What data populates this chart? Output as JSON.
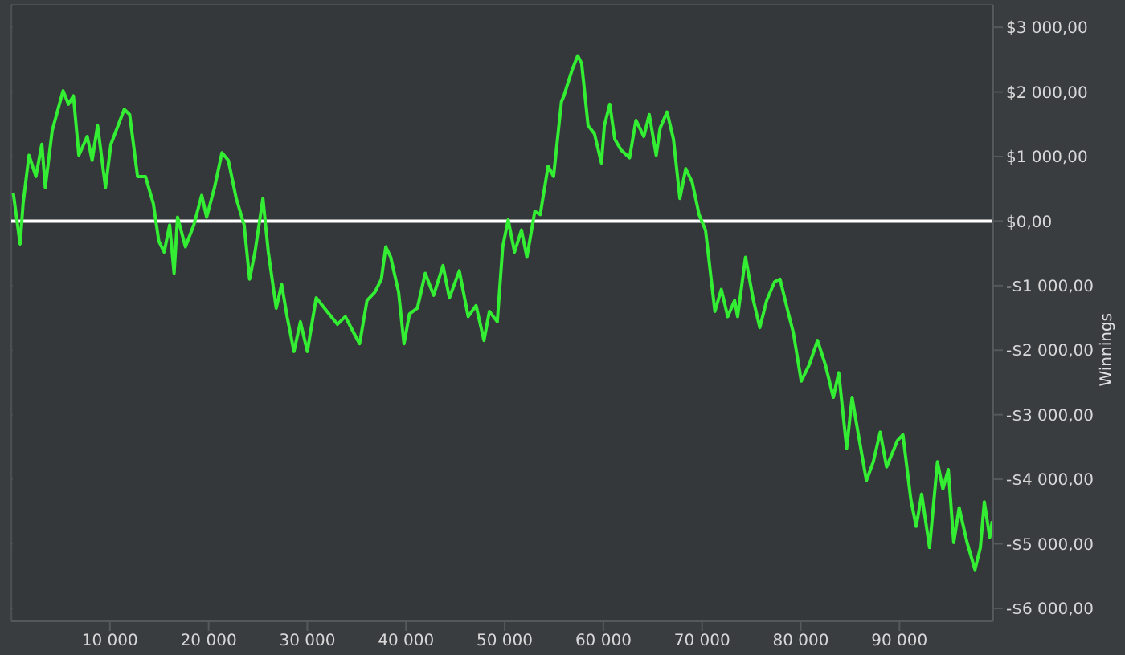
{
  "chart_data": {
    "type": "line",
    "ylabel": "Winnings",
    "x": [
      200,
      900,
      1200,
      1800,
      2500,
      3100,
      3450,
      4150,
      5250,
      5800,
      6300,
      6850,
      7700,
      8200,
      8750,
      9550,
      10100,
      11450,
      12000,
      12800,
      13600,
      14400,
      14950,
      15500,
      16050,
      16500,
      16850,
      17650,
      18500,
      19300,
      19800,
      20600,
      21350,
      22000,
      22800,
      23600,
      24150,
      24700,
      25500,
      26050,
      26850,
      27400,
      27950,
      28650,
      29300,
      30000,
      30900,
      32000,
      33050,
      33850,
      34700,
      35300,
      36050,
      36850,
      37500,
      37950,
      38450,
      39250,
      39800,
      40350,
      41150,
      41950,
      42800,
      43750,
      44400,
      45400,
      46300,
      47100,
      47900,
      48450,
      49250,
      49800,
      50350,
      51000,
      51700,
      52250,
      53050,
      53600,
      54400,
      54950,
      55750,
      56000,
      56850,
      57400,
      57800,
      58450,
      59100,
      59800,
      60100,
      60650,
      61150,
      61800,
      62650,
      63300,
      64100,
      64650,
      65350,
      65750,
      66450,
      67100,
      67750,
      68350,
      69000,
      69700,
      70350,
      71300,
      71950,
      72600,
      73300,
      73600,
      74400,
      75200,
      75850,
      76550,
      77350,
      77900,
      78700,
      79250,
      80050,
      80850,
      81700,
      82500,
      83300,
      83850,
      84650,
      85200,
      85750,
      86650,
      87350,
      88050,
      88700,
      89800,
      90350,
      91150,
      91700,
      92250,
      93050,
      93850,
      94400,
      94950,
      95500,
      96050,
      96850,
      97650,
      98200,
      98600,
      99150,
      99400
    ],
    "series": [
      {
        "color": "#33ee33",
        "values": [
          440,
          -355,
          270,
          1020,
          690,
          1190,
          520,
          1400,
          2020,
          1810,
          1940,
          1020,
          1310,
          940,
          1480,
          520,
          1190,
          1730,
          1650,
          690,
          690,
          270,
          -310,
          -480,
          -60,
          -810,
          60,
          -400,
          -60,
          400,
          60,
          520,
          1060,
          940,
          350,
          -60,
          -900,
          -480,
          350,
          -480,
          -1350,
          -980,
          -1480,
          -2020,
          -1560,
          -2020,
          -1190,
          -1400,
          -1600,
          -1480,
          -1730,
          -1900,
          -1230,
          -1100,
          -900,
          -400,
          -560,
          -1100,
          -1900,
          -1440,
          -1350,
          -810,
          -1150,
          -690,
          -1190,
          -770,
          -1480,
          -1310,
          -1850,
          -1400,
          -1560,
          -400,
          20,
          -480,
          -140,
          -560,
          150,
          100,
          850,
          690,
          1850,
          1940,
          2350,
          2560,
          2440,
          1480,
          1350,
          900,
          1480,
          1810,
          1270,
          1100,
          980,
          1560,
          1310,
          1650,
          1020,
          1440,
          1690,
          1270,
          350,
          810,
          600,
          100,
          -140,
          -1400,
          -1060,
          -1480,
          -1230,
          -1480,
          -560,
          -1230,
          -1650,
          -1230,
          -940,
          -900,
          -1400,
          -1730,
          -2480,
          -2230,
          -1850,
          -2230,
          -2730,
          -2350,
          -3520,
          -2730,
          -3230,
          -4020,
          -3730,
          -3270,
          -3810,
          -3400,
          -3310,
          -4310,
          -4730,
          -4230,
          -5060,
          -3730,
          -4150,
          -3850,
          -4980,
          -4440,
          -4980,
          -5400,
          -5060,
          -4350,
          -4900,
          -4650
        ]
      }
    ],
    "xlim": [
      0,
      99500
    ],
    "xticks": [
      {
        "value": 10000,
        "label": "10 000"
      },
      {
        "value": 20000,
        "label": "20 000"
      },
      {
        "value": 30000,
        "label": "30 000"
      },
      {
        "value": 40000,
        "label": "40 000"
      },
      {
        "value": 50000,
        "label": "50 000"
      },
      {
        "value": 60000,
        "label": "60 000"
      },
      {
        "value": 70000,
        "label": "70 000"
      },
      {
        "value": 80000,
        "label": "80 000"
      },
      {
        "value": 90000,
        "label": "90 000"
      }
    ],
    "ylim": [
      -6200,
      3350
    ],
    "yticks": [
      {
        "value": -6000,
        "label": "-$6 000,00"
      },
      {
        "value": -5000,
        "label": "-$5 000,00"
      },
      {
        "value": -4000,
        "label": "-$4 000,00"
      },
      {
        "value": -3000,
        "label": "-$3 000,00"
      },
      {
        "value": -2000,
        "label": "-$2 000,00"
      },
      {
        "value": -1000,
        "label": "-$1 000,00"
      },
      {
        "value": 0,
        "label": "$0,00"
      },
      {
        "value": 1000,
        "label": "$1 000,00"
      },
      {
        "value": 2000,
        "label": "$2 000,00"
      },
      {
        "value": 3000,
        "label": "$3 000,00"
      }
    ],
    "ref_lines": [
      {
        "axis": "y",
        "value": 0,
        "color": "#ffffff"
      }
    ],
    "grid": true,
    "legend": false,
    "marker": "none",
    "line_style": "solid"
  }
}
